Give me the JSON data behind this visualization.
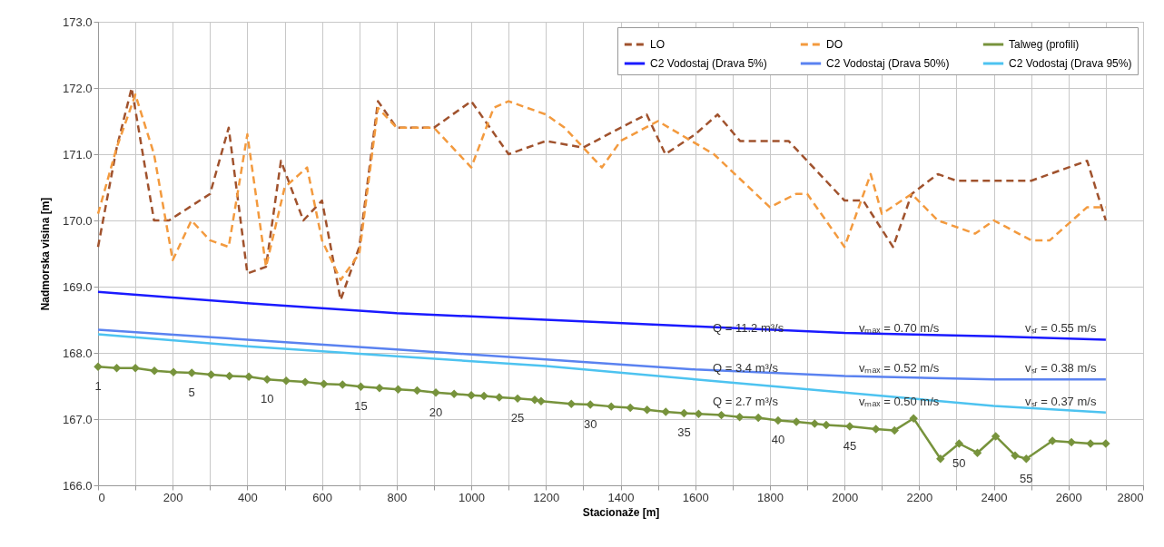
{
  "chart_data": {
    "type": "line",
    "xlabel": "Stacionaže  [m]",
    "ylabel": "Nadmorska visina  [m]",
    "xlim": [
      0,
      2800
    ],
    "xticks": [
      0,
      {
        "value": 100,
        "label": null
      },
      200,
      {
        "value": 300,
        "label": null
      },
      400,
      {
        "value": 500,
        "label": null
      },
      600,
      {
        "value": 700,
        "label": null
      },
      800,
      {
        "value": 900,
        "label": null
      },
      1000,
      {
        "value": 1100,
        "label": null
      },
      1200,
      {
        "value": 1300,
        "label": null
      },
      1400,
      {
        "value": 1500,
        "label": null
      },
      1600,
      {
        "value": 1700,
        "label": null
      },
      1800,
      {
        "value": 1900,
        "label": null
      },
      2000,
      {
        "value": 2100,
        "label": null
      },
      2200,
      {
        "value": 2300,
        "label": null
      },
      2400,
      {
        "value": 2500,
        "label": null
      },
      2600,
      {
        "value": 2700,
        "label": null
      },
      2800
    ],
    "ylim": [
      166,
      173
    ],
    "yticks": [
      {
        "value": 166,
        "label": "166.0"
      },
      {
        "value": 167,
        "label": "167.0"
      },
      {
        "value": 168,
        "label": "168.0"
      },
      {
        "value": 169,
        "label": "169.0"
      },
      {
        "value": 170,
        "label": "170.0"
      },
      {
        "value": 171,
        "label": "171.0"
      },
      {
        "value": 172,
        "label": "172.0"
      },
      {
        "value": 173,
        "label": "173.0"
      }
    ],
    "grid": true,
    "legend": "top right",
    "series": [
      {
        "name": "LO",
        "color": "#a0522d",
        "line_style": "dashed",
        "x": [
          0,
          50,
          90,
          150,
          190,
          300,
          350,
          400,
          450,
          490,
          550,
          600,
          650,
          700,
          750,
          800,
          900,
          1000,
          1100,
          1200,
          1300,
          1400,
          1470,
          1520,
          1600,
          1660,
          1720,
          1850,
          2000,
          2050,
          2130,
          2180,
          2250,
          2300,
          2500,
          2650,
          2700
        ],
        "values": [
          169.6,
          171.1,
          172.0,
          170.0,
          170.0,
          170.4,
          171.4,
          169.2,
          169.3,
          170.9,
          170.0,
          170.3,
          168.8,
          169.6,
          171.8,
          171.4,
          171.4,
          171.8,
          171.0,
          171.2,
          171.1,
          171.4,
          171.6,
          171.0,
          171.3,
          171.6,
          171.2,
          171.2,
          170.3,
          170.3,
          169.6,
          170.4,
          170.7,
          170.6,
          170.6,
          170.9,
          170.0
        ]
      },
      {
        "name": "DO",
        "color": "#f39a3e",
        "line_style": "dashed",
        "x": [
          0,
          50,
          100,
          150,
          200,
          250,
          300,
          350,
          400,
          450,
          500,
          560,
          600,
          650,
          700,
          750,
          800,
          900,
          1000,
          1060,
          1100,
          1200,
          1250,
          1350,
          1400,
          1500,
          1650,
          1800,
          1870,
          1900,
          2000,
          2070,
          2100,
          2180,
          2250,
          2350,
          2400,
          2500,
          2550,
          2650,
          2700
        ],
        "values": [
          170.1,
          171.1,
          171.9,
          171.0,
          169.4,
          170.0,
          169.7,
          169.6,
          171.3,
          169.3,
          170.5,
          170.8,
          169.7,
          169.1,
          169.5,
          171.7,
          171.4,
          171.4,
          170.8,
          171.7,
          171.8,
          171.6,
          171.4,
          170.8,
          171.2,
          171.5,
          171.0,
          170.2,
          170.4,
          170.4,
          169.6,
          170.7,
          170.1,
          170.4,
          170.0,
          169.8,
          170.0,
          169.7,
          169.7,
          170.2,
          170.2
        ]
      },
      {
        "name": "Talweg (profili)",
        "color": "#77933c",
        "line_style": "solid",
        "marker": "diamond",
        "x": [
          0,
          50,
          100,
          151,
          202,
          251,
          303,
          352,
          404,
          453,
          504,
          555,
          605,
          655,
          704,
          754,
          804,
          855,
          905,
          954,
          1000,
          1034,
          1075,
          1124,
          1170,
          1187,
          1268,
          1319,
          1375,
          1426,
          1471,
          1521,
          1570,
          1609,
          1670,
          1719,
          1769,
          1822,
          1871,
          1920,
          1951,
          2014,
          2084,
          2134,
          2185,
          2257,
          2307,
          2356,
          2405,
          2457,
          2487,
          2557,
          2608,
          2659,
          2700
        ],
        "values": [
          167.79,
          167.77,
          167.77,
          167.73,
          167.71,
          167.7,
          167.67,
          167.65,
          167.64,
          167.6,
          167.58,
          167.56,
          167.53,
          167.52,
          167.49,
          167.47,
          167.45,
          167.43,
          167.4,
          167.38,
          167.36,
          167.35,
          167.33,
          167.31,
          167.29,
          167.27,
          167.23,
          167.22,
          167.19,
          167.17,
          167.14,
          167.11,
          167.09,
          167.08,
          167.06,
          167.03,
          167.02,
          166.98,
          166.96,
          166.93,
          166.91,
          166.89,
          166.85,
          166.83,
          167.01,
          166.4,
          166.63,
          166.49,
          166.74,
          166.45,
          166.4,
          166.67,
          166.65,
          166.63,
          166.63
        ]
      },
      {
        "name": "C2 Vodostaj (Drava 5%)",
        "color": "#1a1aff",
        "line_style": "solid",
        "x": [
          0,
          400,
          800,
          1200,
          1600,
          2000,
          2400,
          2700
        ],
        "values": [
          168.92,
          168.75,
          168.6,
          168.5,
          168.4,
          168.3,
          168.25,
          168.2
        ]
      },
      {
        "name": "C2 Vodostaj (Drava 50%)",
        "color": "#5a82f0",
        "line_style": "solid",
        "x": [
          0,
          400,
          800,
          1200,
          1600,
          2000,
          2400,
          2700
        ],
        "values": [
          168.35,
          168.2,
          168.05,
          167.9,
          167.75,
          167.65,
          167.6,
          167.6
        ]
      },
      {
        "name": "C2 Vodostaj (Drava 95%)",
        "color": "#4dc3f0",
        "line_style": "solid",
        "x": [
          0,
          400,
          800,
          1200,
          1600,
          2000,
          2400,
          2700
        ],
        "values": [
          168.28,
          168.1,
          167.95,
          167.8,
          167.6,
          167.4,
          167.2,
          167.1
        ]
      }
    ],
    "annotations": [
      "1",
      "5",
      "10",
      "15",
      "20",
      "25",
      "30",
      "35",
      "40",
      "45",
      "50",
      "55",
      "Q = 11.2 m³/s",
      "vₘₐₓ = 0.70 m/s",
      "vₛᵣ = 0.55 m/s",
      "Q = 3.4 m³/s",
      "vₘₐₓ = 0.52 m/s",
      "vₛᵣ = 0.38 m/s",
      "Q = 2.7 m³/s",
      "vₘₐₓ = 0.50 m/s",
      "vₛᵣ = 0.37 m/s"
    ]
  }
}
